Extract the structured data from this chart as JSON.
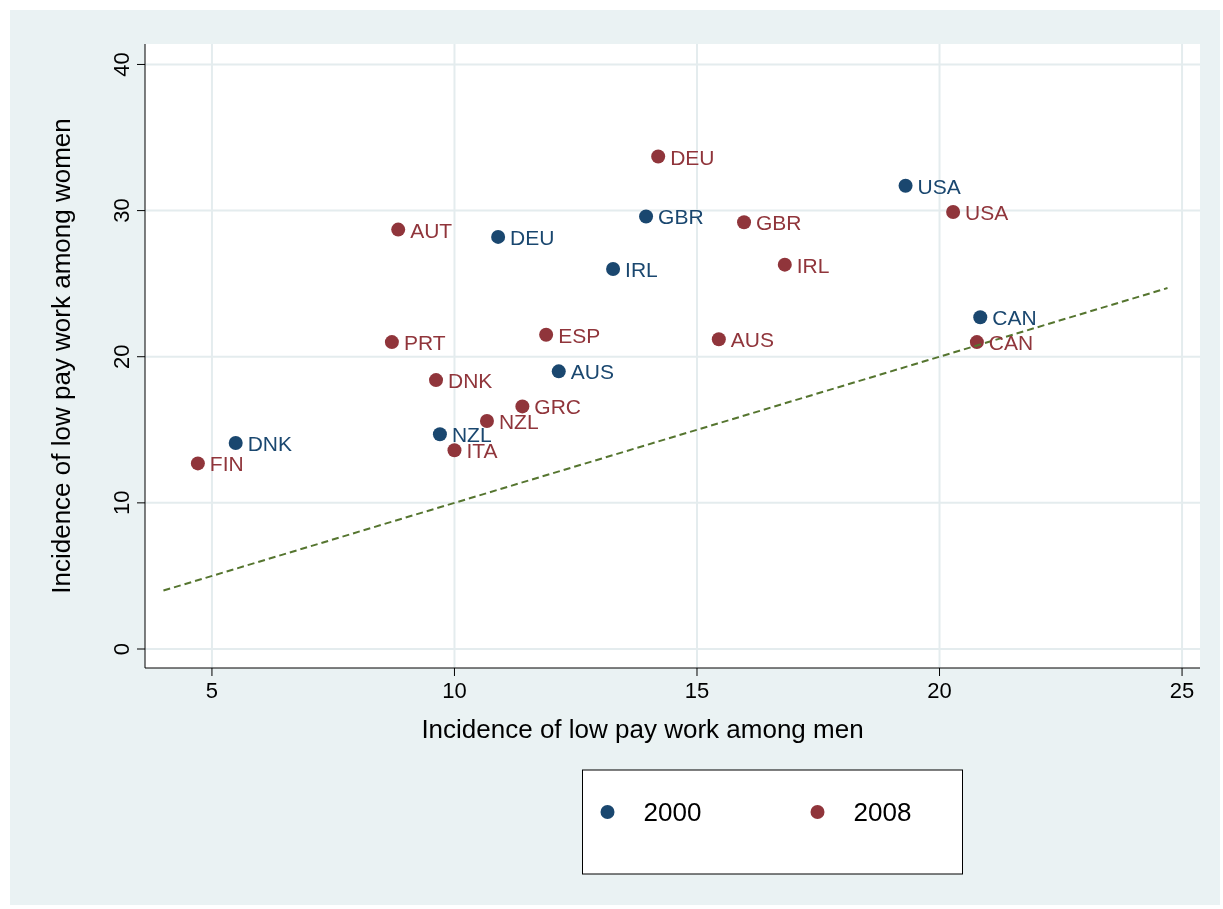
{
  "chart_data": {
    "type": "scatter",
    "xlabel": "Incidence of low pay work among men",
    "ylabel": "Incidence of low pay work among women",
    "xlim": [
      3.62,
      25.37
    ],
    "ylim": [
      -1.3,
      41.4
    ],
    "xticks": [
      5,
      10,
      15,
      20,
      25
    ],
    "yticks": [
      0,
      10,
      20,
      30,
      40
    ],
    "grid": true,
    "legend": "bottom",
    "marker": "circle",
    "series": [
      {
        "name": "2000",
        "color": "#1a476f",
        "x": [
          5.49,
          9.7,
          12.15,
          13.27,
          10.9,
          13.95,
          19.3,
          20.84
        ],
        "values": [
          14.1,
          14.7,
          19.0,
          26.0,
          28.2,
          29.6,
          31.7,
          22.7
        ]
      },
      {
        "name": "2008",
        "color": "#90353b",
        "x": [
          4.71,
          8.84,
          8.71,
          9.62,
          10.0,
          10.67,
          11.4,
          11.89,
          14.2,
          15.97,
          16.81,
          15.45,
          20.28,
          20.77
        ],
        "values": [
          12.7,
          28.7,
          21.0,
          18.4,
          13.6,
          15.6,
          16.6,
          21.5,
          33.7,
          29.2,
          26.3,
          21.2,
          29.9,
          21.0
        ]
      },
      {
        "type": "line",
        "color": "#55752f",
        "line_style": "dashed",
        "marker": "none",
        "x": [
          4,
          24.7
        ],
        "values": [
          4,
          24.7
        ]
      }
    ],
    "annotations": [
      {
        "text": "DNK",
        "x": 5.49,
        "y": 14.1
      },
      {
        "text": "NZL",
        "x": 9.7,
        "y": 14.7
      },
      {
        "text": "AUS",
        "x": 12.15,
        "y": 19.0
      },
      {
        "text": "IRL",
        "x": 13.27,
        "y": 26.0
      },
      {
        "text": "DEU",
        "x": 10.9,
        "y": 28.2
      },
      {
        "text": "GBR",
        "x": 13.95,
        "y": 29.6
      },
      {
        "text": "USA",
        "x": 19.3,
        "y": 31.7
      },
      {
        "text": "CAN",
        "x": 20.84,
        "y": 22.7
      },
      {
        "text": "FIN",
        "x": 4.71,
        "y": 12.7
      },
      {
        "text": "AUT",
        "x": 8.84,
        "y": 28.7
      },
      {
        "text": "PRT",
        "x": 8.71,
        "y": 21.0
      },
      {
        "text": "DNK",
        "x": 9.62,
        "y": 18.4
      },
      {
        "text": "ITA",
        "x": 10.0,
        "y": 13.6
      },
      {
        "text": "NZL",
        "x": 10.67,
        "y": 15.6
      },
      {
        "text": "GRC",
        "x": 11.4,
        "y": 16.6
      },
      {
        "text": "ESP",
        "x": 11.89,
        "y": 21.5
      },
      {
        "text": "DEU",
        "x": 14.2,
        "y": 33.7
      },
      {
        "text": "GBR",
        "x": 15.97,
        "y": 29.2
      },
      {
        "text": "IRL",
        "x": 16.81,
        "y": 26.3
      },
      {
        "text": "AUS",
        "x": 15.45,
        "y": 21.2
      },
      {
        "text": "USA",
        "x": 20.28,
        "y": 29.9
      },
      {
        "text": "CAN",
        "x": 20.77,
        "y": 21.0
      }
    ]
  }
}
